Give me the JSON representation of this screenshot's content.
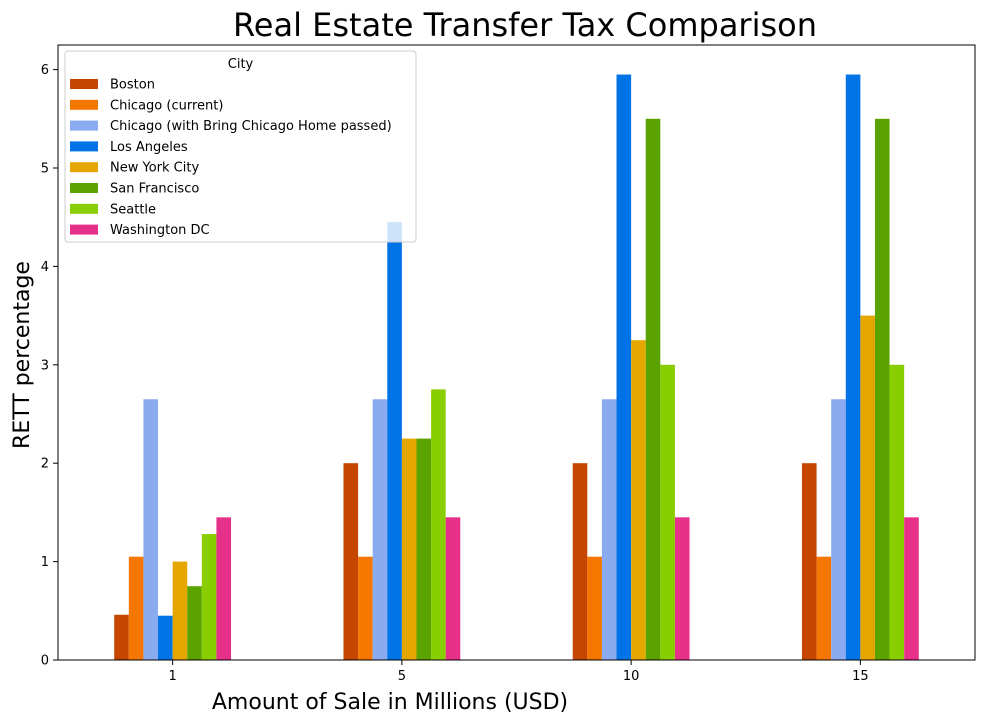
{
  "chart_data": {
    "type": "bar",
    "title": "Real Estate Transfer Tax Comparison",
    "xlabel": "Amount of Sale in Millions (USD)",
    "ylabel": "RETT percentage",
    "categories": [
      "1",
      "5",
      "10",
      "15"
    ],
    "ylim": [
      0,
      6.25
    ],
    "yticks": [
      "0",
      "1",
      "2",
      "3",
      "4",
      "5",
      "6"
    ],
    "grid": false,
    "legend": {
      "title": "City",
      "placement": "top-left"
    },
    "series": [
      {
        "name": "Boston",
        "color": "#c44601",
        "values": [
          0.46,
          2.0,
          2.0,
          2.0
        ]
      },
      {
        "name": "Chicago (current)",
        "color": "#f57600",
        "values": [
          1.05,
          1.05,
          1.05,
          1.05
        ]
      },
      {
        "name": "Chicago (with Bring Chicago Home passed)",
        "color": "#8babf1",
        "values": [
          2.65,
          2.65,
          2.65,
          2.65
        ]
      },
      {
        "name": "Los Angeles",
        "color": "#0073e6",
        "values": [
          0.45,
          4.45,
          5.95,
          5.95
        ]
      },
      {
        "name": "New York City",
        "color": "#e6a600",
        "values": [
          1.0,
          2.25,
          3.25,
          3.5
        ]
      },
      {
        "name": "San Francisco",
        "color": "#5ba300",
        "values": [
          0.75,
          2.25,
          5.5,
          5.5
        ]
      },
      {
        "name": "Seattle",
        "color": "#89ce00",
        "values": [
          1.28,
          2.75,
          3.0,
          3.0
        ]
      },
      {
        "name": "Washington DC",
        "color": "#e6308a",
        "values": [
          1.45,
          1.45,
          1.45,
          1.45
        ]
      }
    ]
  }
}
